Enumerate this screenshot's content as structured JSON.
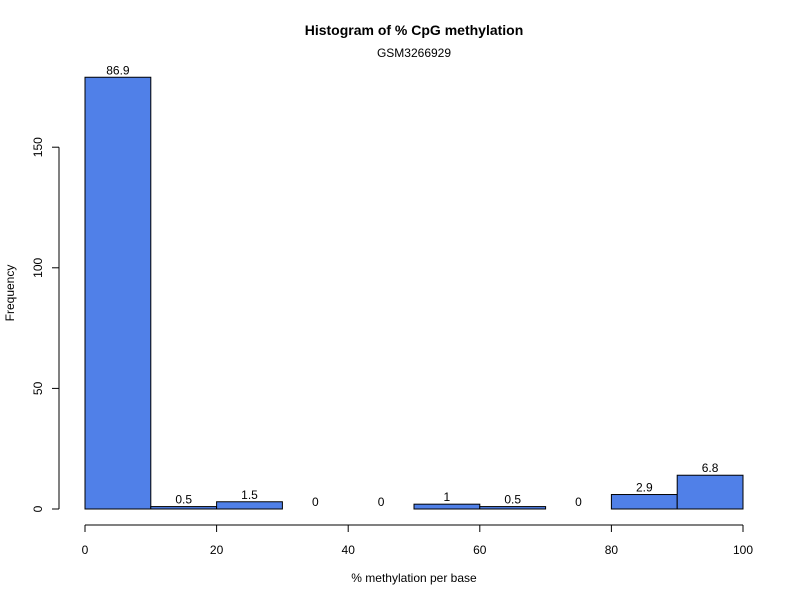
{
  "chart_data": {
    "type": "bar",
    "title": "Histogram of % CpG methylation",
    "subtitle": "GSM3266929",
    "xlabel": "% methylation per base",
    "ylabel": "Frequency",
    "bins": [
      {
        "x0": 0,
        "x1": 10,
        "count": 179,
        "label": "86.9"
      },
      {
        "x0": 10,
        "x1": 20,
        "count": 1,
        "label": "0.5"
      },
      {
        "x0": 20,
        "x1": 30,
        "count": 3,
        "label": "1.5"
      },
      {
        "x0": 30,
        "x1": 40,
        "count": 0,
        "label": "0"
      },
      {
        "x0": 40,
        "x1": 50,
        "count": 0,
        "label": "0"
      },
      {
        "x0": 50,
        "x1": 60,
        "count": 2,
        "label": "1"
      },
      {
        "x0": 60,
        "x1": 70,
        "count": 1,
        "label": "0.5"
      },
      {
        "x0": 70,
        "x1": 80,
        "count": 0,
        "label": "0"
      },
      {
        "x0": 80,
        "x1": 90,
        "count": 6,
        "label": "2.9"
      },
      {
        "x0": 90,
        "x1": 100,
        "count": 14,
        "label": "6.8"
      }
    ],
    "xlim": [
      0,
      100
    ],
    "ylim": [
      0,
      180
    ],
    "xticks": [
      0,
      20,
      40,
      60,
      80,
      100
    ],
    "yticks": [
      0,
      50,
      100,
      150
    ],
    "grid": false,
    "bar_color": "#5080E8",
    "border_color": "#000000"
  }
}
